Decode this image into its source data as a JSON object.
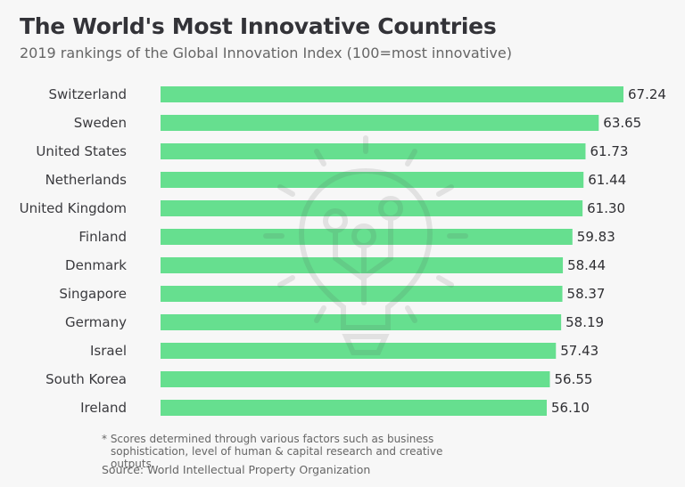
{
  "chart_data": {
    "type": "bar",
    "orientation": "horizontal",
    "title": "The World's Most Innovative Countries",
    "subtitle": "2019 rankings of the Global Innovation Index (100=most innovative)",
    "xlabel": "",
    "ylabel": "",
    "xlim": [
      0,
      67.24
    ],
    "grid": false,
    "legend": "none",
    "categories": [
      "Switzerland",
      "Sweden",
      "United States",
      "Netherlands",
      "United Kingdom",
      "Finland",
      "Denmark",
      "Singapore",
      "Germany",
      "Israel",
      "South Korea",
      "Ireland"
    ],
    "values": [
      67.24,
      63.65,
      61.73,
      61.44,
      61.3,
      59.83,
      58.44,
      58.37,
      58.19,
      57.43,
      56.55,
      56.1
    ],
    "value_labels": [
      "67.24",
      "63.65",
      "61.73",
      "61.44",
      "61.30",
      "59.83",
      "58.44",
      "58.37",
      "58.19",
      "57.43",
      "56.55",
      "56.10"
    ],
    "bar_color": "#66df8f",
    "background_icon": "lightbulb-icon"
  },
  "footnote": {
    "line1": "* Scores determined through various factors such as business",
    "line2": "sophistication, level of human & capital research and creative outputs."
  },
  "source": "Source: World Intellectual Property Organization"
}
